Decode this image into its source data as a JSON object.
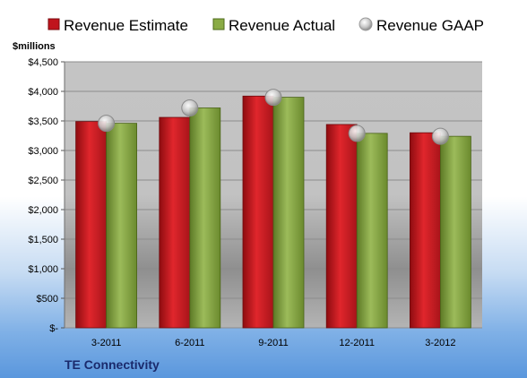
{
  "chart_data": {
    "type": "bar",
    "unit_label": "$millions",
    "company": "TE Connectivity",
    "categories": [
      "3-2011",
      "6-2011",
      "9-2011",
      "12-2011",
      "3-2012"
    ],
    "series": [
      {
        "name": "Revenue Estimate",
        "kind": "bar",
        "color": "#c0141c",
        "values": [
          3490,
          3560,
          3920,
          3440,
          3300
        ]
      },
      {
        "name": "Revenue Actual",
        "kind": "bar",
        "color": "#7f9c3c",
        "values": [
          3460,
          3720,
          3900,
          3290,
          3240
        ]
      },
      {
        "name": "Revenue GAAP",
        "kind": "marker",
        "color": "#b8b8b8",
        "values": [
          3460,
          3720,
          3900,
          3290,
          3240
        ]
      }
    ],
    "ylim": [
      0,
      4500
    ],
    "yticks": [
      0,
      500,
      1000,
      1500,
      2000,
      2500,
      3000,
      3500,
      4000,
      4500
    ],
    "ytick_labels": [
      "$-",
      "$500",
      "$1,000",
      "$1,500",
      "$2,000",
      "$2,500",
      "$3,000",
      "$3,500",
      "$4,000",
      "$4,500"
    ],
    "grid": true,
    "legend_position": "top"
  }
}
